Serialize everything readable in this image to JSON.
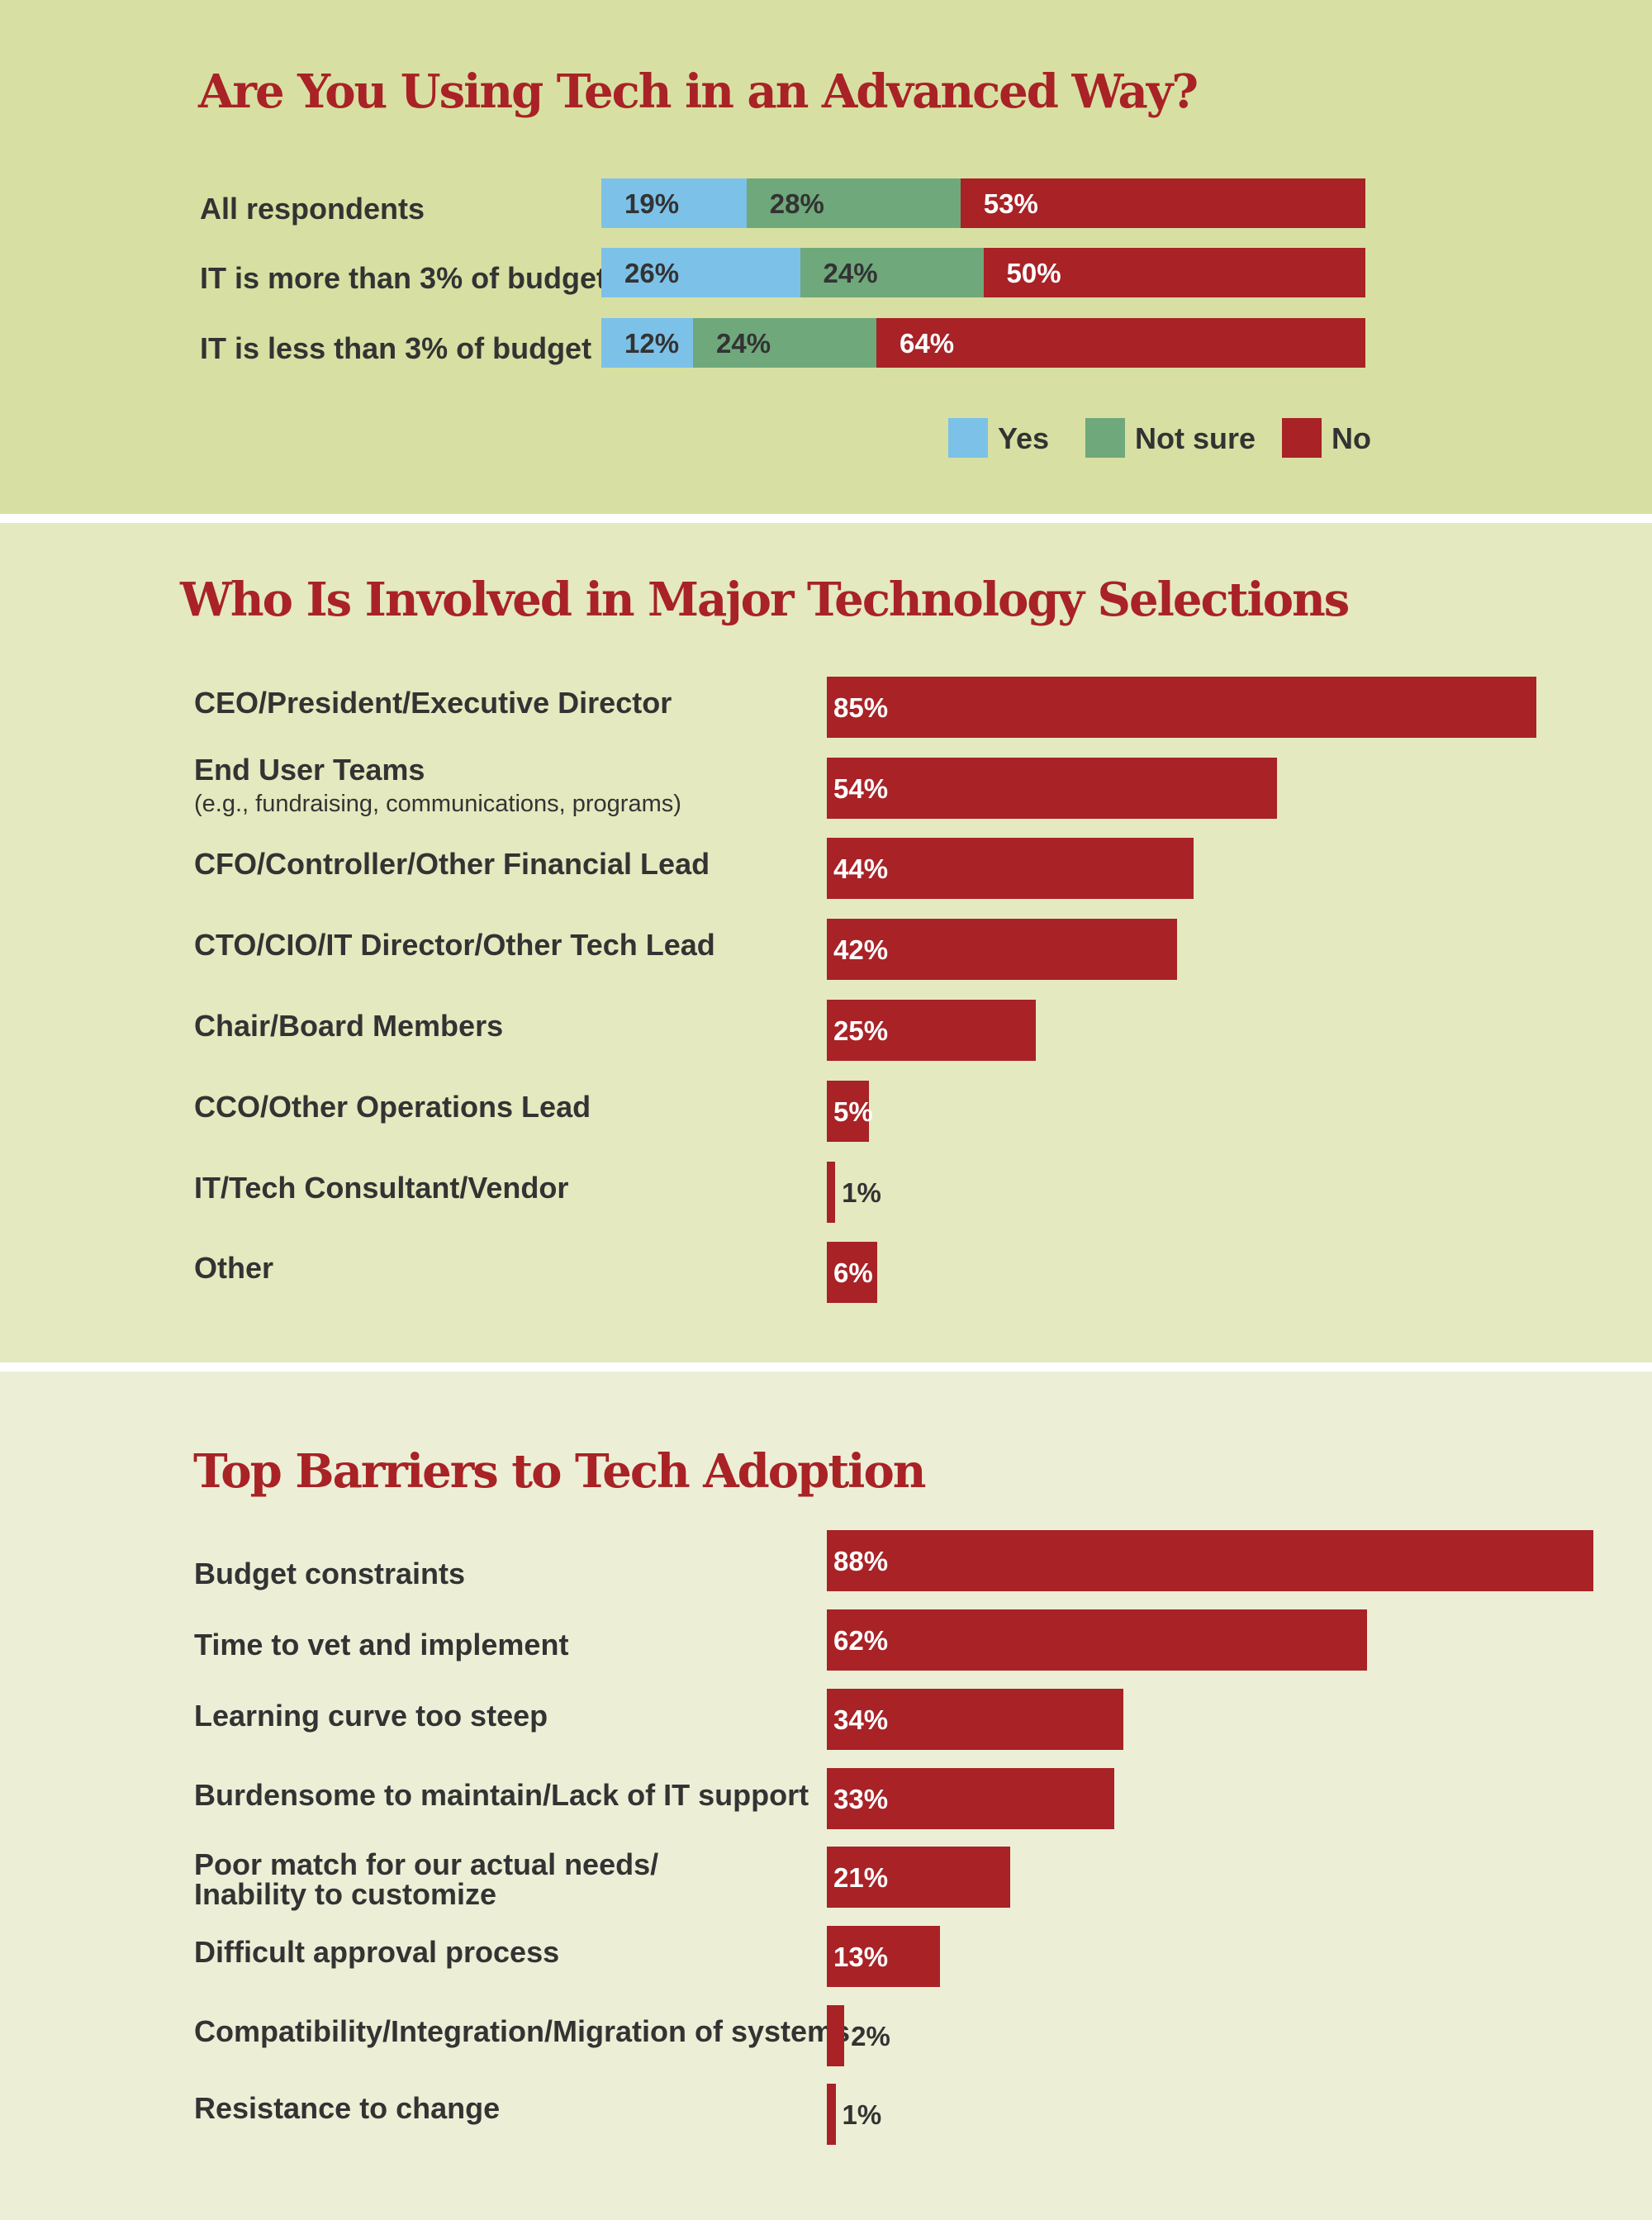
{
  "colors": {
    "yes": "#7cc1e8",
    "not_sure": "#6fa87b",
    "no": "#a82226",
    "label_dark": "#333333",
    "label_light": "#ffffff"
  },
  "chart_data": [
    {
      "type": "bar",
      "stacked": true,
      "orientation": "horizontal",
      "title": "Are You Using Tech in an Advanced Way?",
      "categories": [
        "All respondents",
        "IT is more than 3% of budget",
        "IT is less than 3% of budget"
      ],
      "series": [
        {
          "name": "Yes",
          "values": [
            19,
            26,
            12
          ],
          "labels": [
            "19%",
            "26%",
            "12%"
          ]
        },
        {
          "name": "Not sure",
          "values": [
            28,
            24,
            24
          ],
          "labels": [
            "28%",
            "24%",
            "24%"
          ]
        },
        {
          "name": "No",
          "values": [
            53,
            50,
            64
          ],
          "labels": [
            "53%",
            "50%",
            "64%"
          ]
        }
      ],
      "legend": {
        "position": "bottom-right",
        "items": [
          "Yes",
          "Not sure",
          "No"
        ]
      },
      "xlim": [
        0,
        100
      ]
    },
    {
      "type": "bar",
      "orientation": "horizontal",
      "title": "Who Is Involved in Major Technology Selections",
      "categories": [
        "CEO/President/Executive Director",
        "End User Teams",
        "CFO/Controller/Other Financial Lead",
        "CTO/CIO/IT Director/Other Tech Lead",
        "Chair/Board Members",
        "CCO/Other Operations Lead",
        "IT/Tech Consultant/Vendor",
        "Other"
      ],
      "sublabels": [
        "",
        "(e.g., fundraising, communications, programs)",
        "",
        "",
        "",
        "",
        "",
        ""
      ],
      "values": [
        85,
        54,
        44,
        42,
        25,
        5,
        1,
        6
      ],
      "value_labels": [
        "85%",
        "54%",
        "44%",
        "42%",
        "25%",
        "5%",
        "1%",
        "6%"
      ],
      "xlim": [
        0,
        100
      ]
    },
    {
      "type": "bar",
      "orientation": "horizontal",
      "title": "Top Barriers to Tech Adoption",
      "categories": [
        "Budget constraints",
        "Time to vet and implement",
        "Learning curve too steep",
        "Burdensome to maintain/Lack of IT support",
        "Poor match for our actual needs/\nInability to customize",
        "Difficult approval process",
        "Compatibility/Integration/Migration of systems",
        "Resistance to change"
      ],
      "values": [
        88,
        62,
        34,
        33,
        21,
        13,
        2,
        1
      ],
      "value_labels": [
        "88%",
        "62%",
        "34%",
        "33%",
        "21%",
        "13%",
        "2%",
        "1%"
      ],
      "xlim": [
        0,
        100
      ]
    }
  ]
}
